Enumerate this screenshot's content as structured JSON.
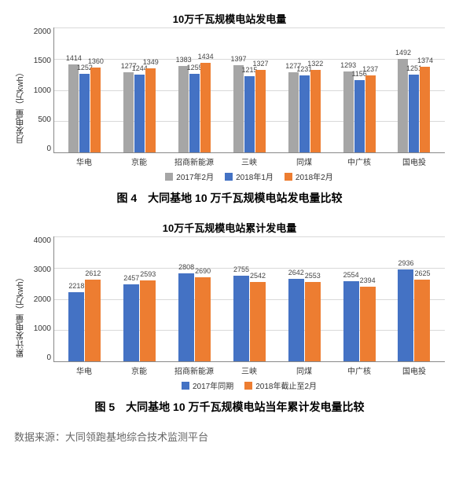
{
  "colors": {
    "s1": "#a6a6a6",
    "s2": "#4472c4",
    "s3": "#ed7d31",
    "grid": "#d9d9d9",
    "text": "#333333"
  },
  "chart1": {
    "title": "10万千瓦规模电站发电量",
    "type": "bar",
    "ylabel": "月发电量（万kwh）",
    "ylim": [
      0,
      2000
    ],
    "ytick_step": 500,
    "yticks": [
      "2000",
      "1500",
      "1000",
      "500",
      "0"
    ],
    "categories": [
      "华电",
      "京能",
      "招商新能源",
      "三峡",
      "同煤",
      "中广核",
      "国电投"
    ],
    "series": [
      {
        "name": "2017年2月",
        "color": "#a6a6a6"
      },
      {
        "name": "2018年1月",
        "color": "#4472c4"
      },
      {
        "name": "2018年2月",
        "color": "#ed7d31"
      }
    ],
    "values": [
      [
        1414,
        1252,
        1360
      ],
      [
        1277,
        1244,
        1349
      ],
      [
        1383,
        1255,
        1434
      ],
      [
        1397,
        1215,
        1327
      ],
      [
        1277,
        1231,
        1322
      ],
      [
        1293,
        1156,
        1237
      ],
      [
        1492,
        1251,
        1374
      ]
    ]
  },
  "caption1": "图 4　大同基地 10 万千瓦规模电站发电量比较",
  "chart2": {
    "title": "10万千瓦规模电站累计发电量",
    "type": "bar",
    "ylabel": "累计发电量（万kwh）",
    "ylim": [
      0,
      4000
    ],
    "ytick_step": 1000,
    "yticks": [
      "4000",
      "3000",
      "2000",
      "1000",
      "0"
    ],
    "categories": [
      "华电",
      "京能",
      "招商新能源",
      "三峡",
      "同煤",
      "中广核",
      "国电投"
    ],
    "series": [
      {
        "name": "2017年同期",
        "color": "#4472c4"
      },
      {
        "name": "2018年截止至2月",
        "color": "#ed7d31"
      }
    ],
    "values": [
      [
        2218,
        2612
      ],
      [
        2457,
        2593
      ],
      [
        2808,
        2690
      ],
      [
        2755,
        2542
      ],
      [
        2642,
        2553
      ],
      [
        2554,
        2394
      ],
      [
        2936,
        2625
      ]
    ]
  },
  "caption2": "图 5　大同基地 10 万千瓦规模电站当年累计发电量比较",
  "source": "数据来源：大同领跑基地综合技术监测平台"
}
